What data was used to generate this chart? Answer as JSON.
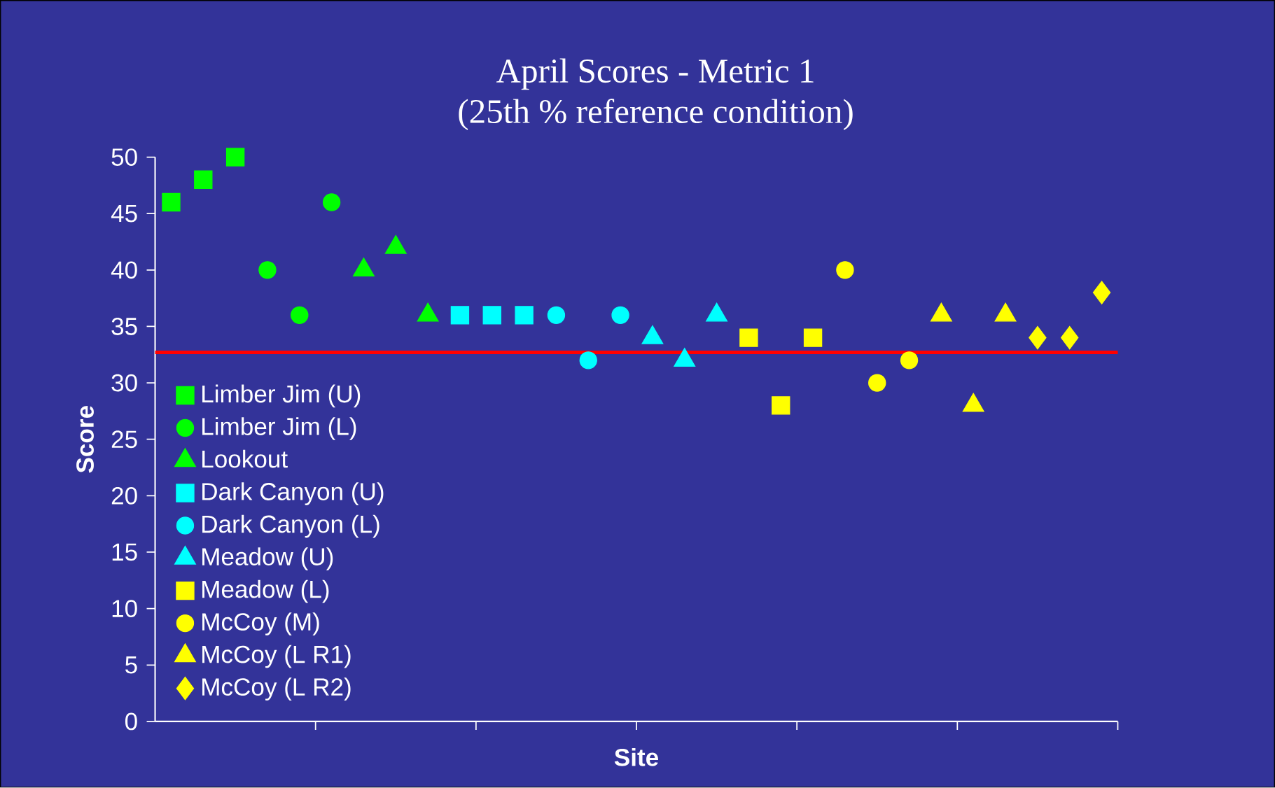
{
  "chart_data": {
    "type": "scatter",
    "title": "April Scores - Metric 1",
    "subtitle": "(25th % reference condition)",
    "xlabel": "Site",
    "ylabel": "Score",
    "categories": [
      null,
      null,
      null,
      null,
      null,
      null,
      null,
      null,
      null,
      null,
      null,
      null,
      null,
      null,
      null,
      null,
      null,
      null,
      null,
      null,
      null,
      null,
      null,
      null,
      null,
      null,
      null,
      null,
      null,
      null
    ],
    "ylim": [
      0,
      50
    ],
    "yticks": [
      0,
      5,
      10,
      15,
      20,
      25,
      30,
      35,
      40,
      45,
      50
    ],
    "grid": false,
    "legend": "bottom left",
    "ref_lines": [
      {
        "axis": "y",
        "value": 32.7,
        "color": "#ff0000"
      }
    ],
    "series": [
      {
        "name": "Limber Jim (U)",
        "color": "#00ff00",
        "marker": "square",
        "values": [
          46,
          48,
          50,
          null,
          null,
          null,
          null,
          null,
          null,
          null,
          null,
          null,
          null,
          null,
          null,
          null,
          null,
          null,
          null,
          null,
          null,
          null,
          null,
          null,
          null,
          null,
          null,
          null,
          null,
          null
        ]
      },
      {
        "name": "Limber Jim (L)",
        "color": "#00ff00",
        "marker": "circle",
        "values": [
          null,
          null,
          null,
          40,
          36,
          46,
          null,
          null,
          null,
          null,
          null,
          null,
          null,
          null,
          null,
          null,
          null,
          null,
          null,
          null,
          null,
          null,
          null,
          null,
          null,
          null,
          null,
          null,
          null,
          null
        ]
      },
      {
        "name": "Lookout",
        "color": "#00ff00",
        "marker": "triangle",
        "values": [
          null,
          null,
          null,
          null,
          null,
          null,
          40,
          42,
          36,
          null,
          null,
          null,
          null,
          null,
          null,
          null,
          null,
          null,
          null,
          null,
          null,
          null,
          null,
          null,
          null,
          null,
          null,
          null,
          null,
          null
        ]
      },
      {
        "name": "Dark Canyon (U)",
        "color": "#00ffff",
        "marker": "square",
        "values": [
          null,
          null,
          null,
          null,
          null,
          null,
          null,
          null,
          null,
          36,
          36,
          36,
          null,
          null,
          null,
          null,
          null,
          null,
          null,
          null,
          null,
          null,
          null,
          null,
          null,
          null,
          null,
          null,
          null,
          null
        ]
      },
      {
        "name": "Dark Canyon (L)",
        "color": "#00ffff",
        "marker": "circle",
        "values": [
          null,
          null,
          null,
          null,
          null,
          null,
          null,
          null,
          null,
          null,
          null,
          null,
          36,
          32,
          36,
          null,
          null,
          null,
          null,
          null,
          null,
          null,
          null,
          null,
          null,
          null,
          null,
          null,
          null,
          null
        ]
      },
      {
        "name": "Meadow (U)",
        "color": "#00ffff",
        "marker": "triangle",
        "values": [
          null,
          null,
          null,
          null,
          null,
          null,
          null,
          null,
          null,
          null,
          null,
          null,
          null,
          null,
          null,
          34,
          32,
          36,
          null,
          null,
          null,
          null,
          null,
          null,
          null,
          null,
          null,
          null,
          null,
          null
        ]
      },
      {
        "name": "Meadow (L)",
        "color": "#ffff00",
        "marker": "square",
        "values": [
          null,
          null,
          null,
          null,
          null,
          null,
          null,
          null,
          null,
          null,
          null,
          null,
          null,
          null,
          null,
          null,
          null,
          null,
          34,
          28,
          34,
          null,
          null,
          null,
          null,
          null,
          null,
          null,
          null,
          null
        ]
      },
      {
        "name": "McCoy (M)",
        "color": "#ffff00",
        "marker": "circle",
        "values": [
          null,
          null,
          null,
          null,
          null,
          null,
          null,
          null,
          null,
          null,
          null,
          null,
          null,
          null,
          null,
          null,
          null,
          null,
          null,
          null,
          null,
          40,
          30,
          32,
          null,
          null,
          null,
          null,
          null,
          null
        ]
      },
      {
        "name": "McCoy (L R1)",
        "color": "#ffff00",
        "marker": "triangle",
        "values": [
          null,
          null,
          null,
          null,
          null,
          null,
          null,
          null,
          null,
          null,
          null,
          null,
          null,
          null,
          null,
          null,
          null,
          null,
          null,
          null,
          null,
          null,
          null,
          null,
          36,
          28,
          36,
          null,
          null,
          null
        ]
      },
      {
        "name": "McCoy (L R2)",
        "color": "#ffff00",
        "marker": "diamond",
        "values": [
          null,
          null,
          null,
          null,
          null,
          null,
          null,
          null,
          null,
          null,
          null,
          null,
          null,
          null,
          null,
          null,
          null,
          null,
          null,
          null,
          null,
          null,
          null,
          null,
          null,
          null,
          null,
          34,
          34,
          38
        ]
      }
    ]
  }
}
